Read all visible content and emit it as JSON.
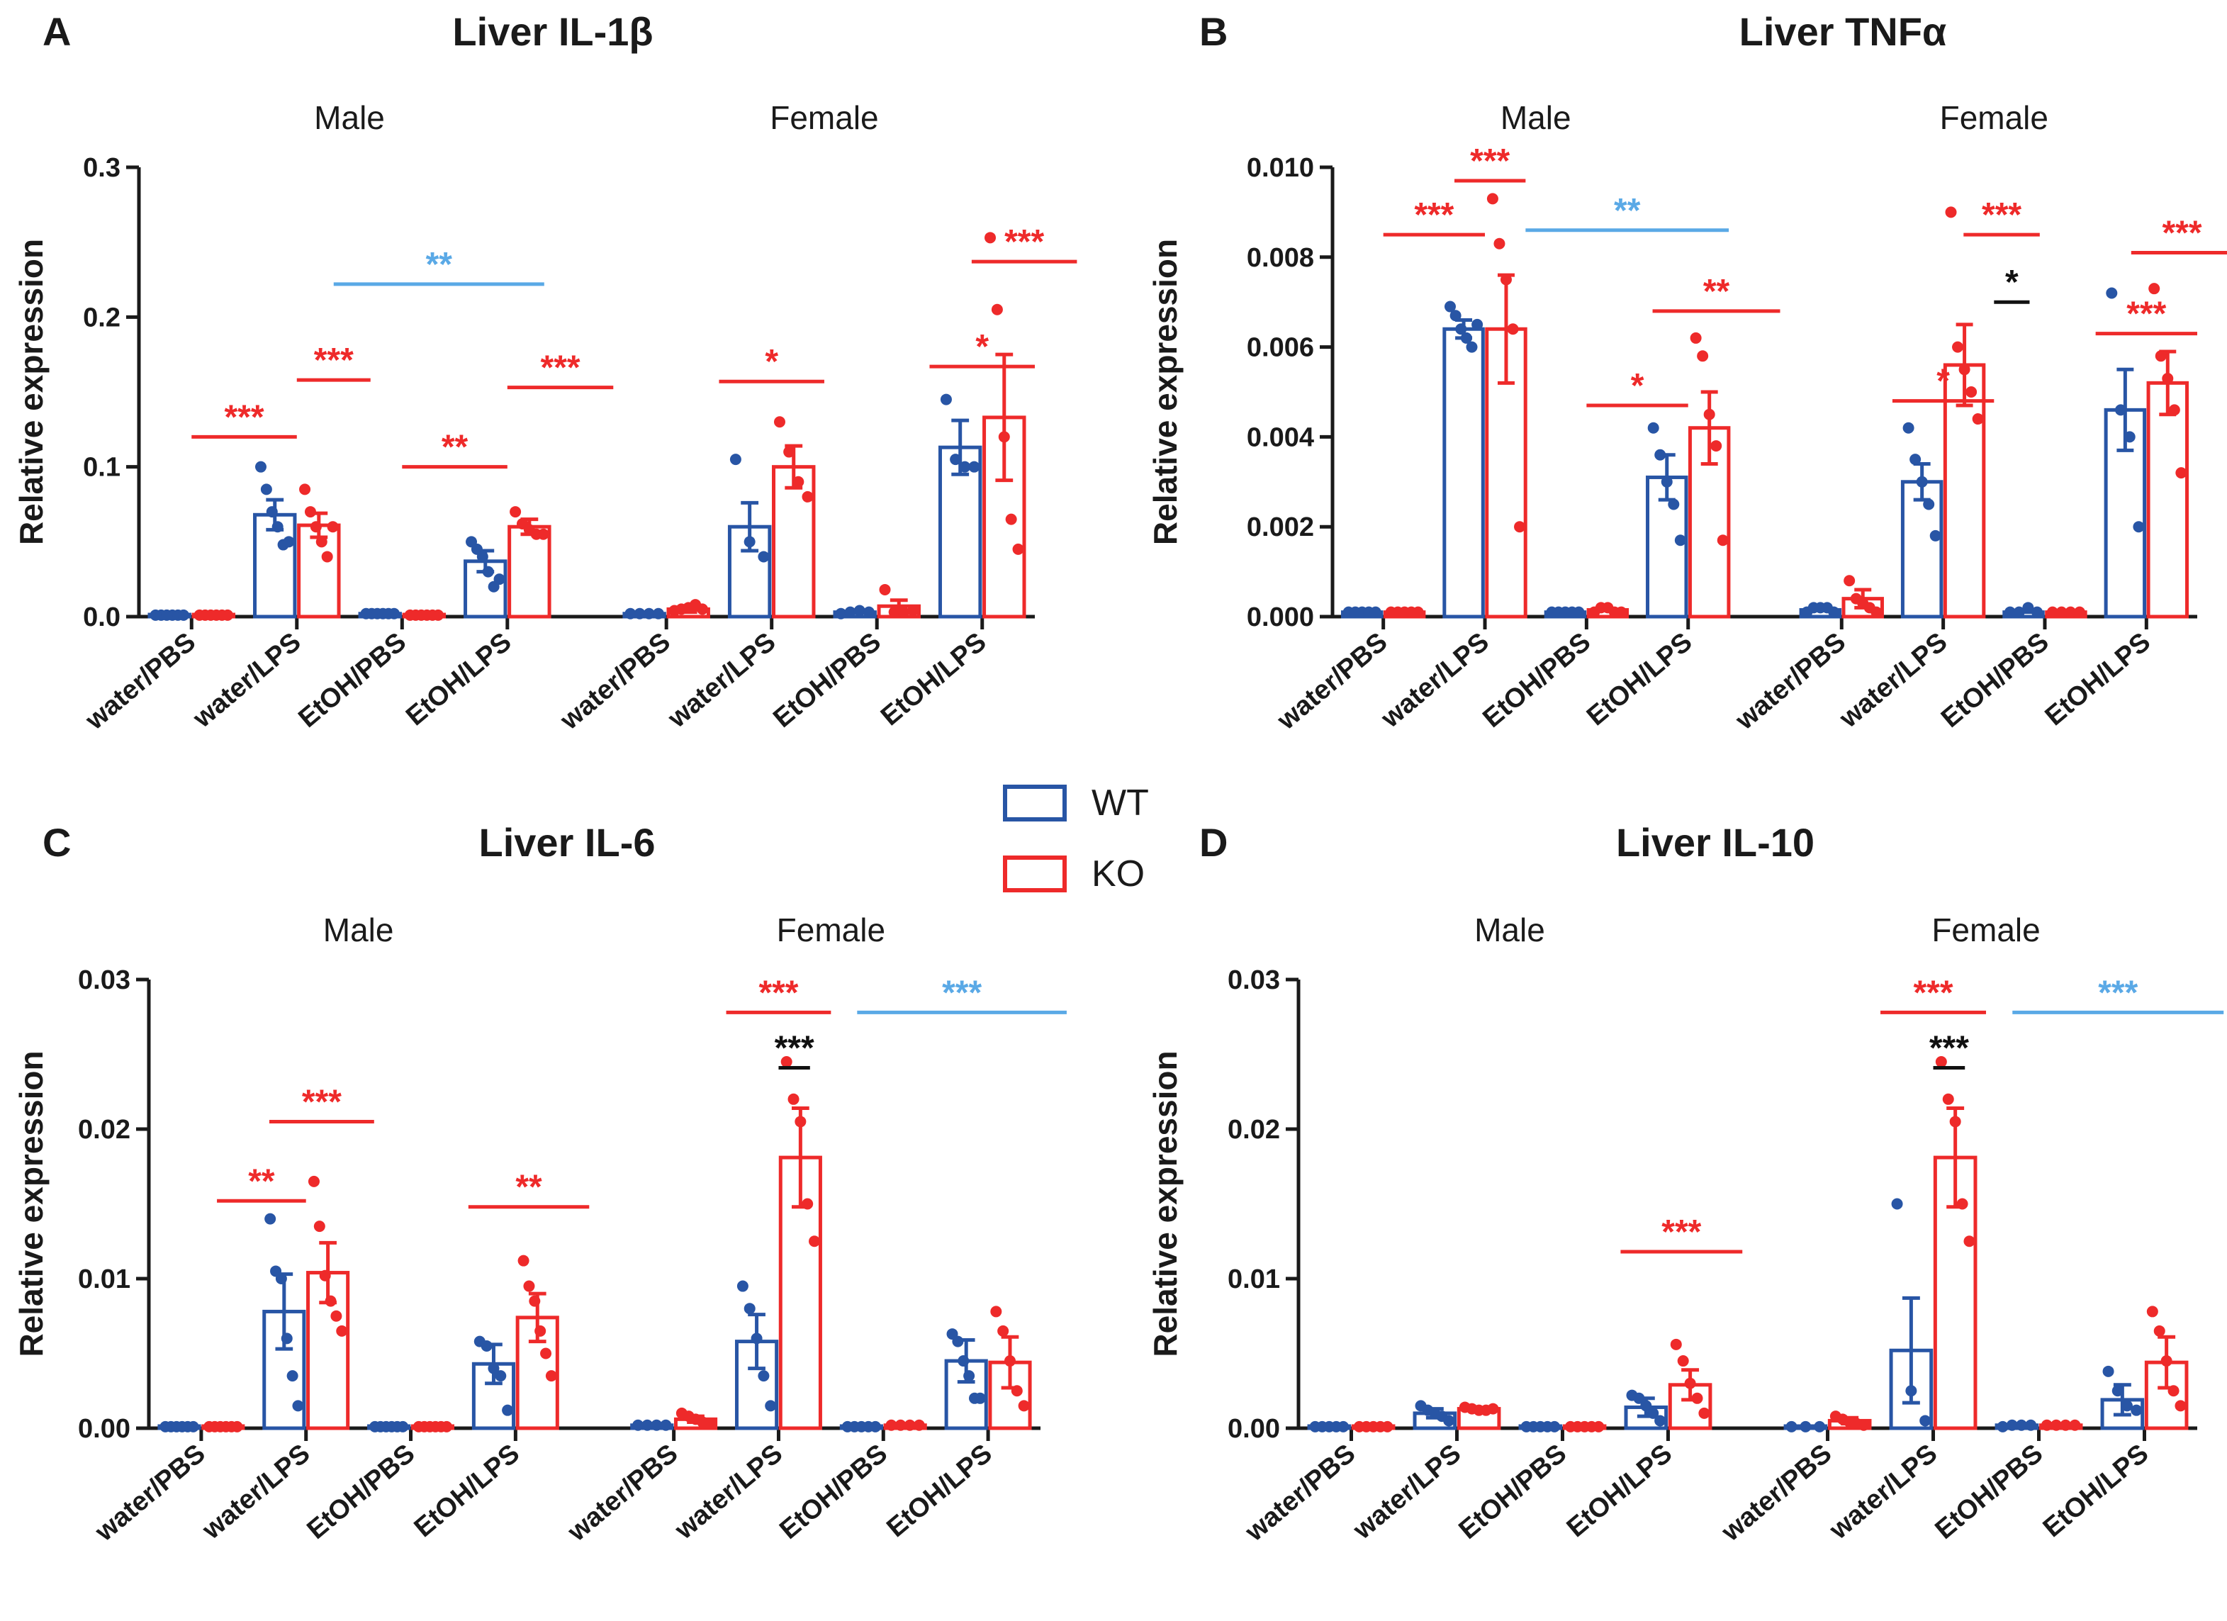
{
  "legend": {
    "items": [
      {
        "label": "WT",
        "color": "#2855a5"
      },
      {
        "label": "KO",
        "color": "#ee2a2a"
      }
    ]
  },
  "colors": {
    "wt": "#2855a5",
    "ko": "#ee2a2a",
    "blue_sig": "#5aa9e6",
    "black_sig": "#111111",
    "axis": "#1a1a1a"
  },
  "chart_data": [
    {
      "panel": "A",
      "type": "bar",
      "title": "Liver IL-1β",
      "ylabel": "Relative expression",
      "ylim": [
        0,
        0.3
      ],
      "yticks": [
        "0.0",
        "0.1",
        "0.2",
        "0.3"
      ],
      "yticks_values": [
        0,
        0.1,
        0.2,
        0.3
      ],
      "groups": [
        "Male",
        "Female"
      ],
      "categories": [
        "water/PBS",
        "water/LPS",
        "EtOH/PBS",
        "EtOH/LPS",
        "water/PBS",
        "water/LPS",
        "EtOH/PBS",
        "EtOH/LPS"
      ],
      "series": [
        {
          "name": "WT",
          "values": [
            0.001,
            0.068,
            0.002,
            0.037,
            0.002,
            0.06,
            0.003,
            0.113
          ],
          "errors": [
            0.001,
            0.01,
            0.001,
            0.007,
            0.001,
            0.016,
            0.001,
            0.018
          ],
          "points": [
            [
              0.001,
              0.001,
              0.001,
              0.001,
              0.001,
              0.001
            ],
            [
              0.1,
              0.085,
              0.07,
              0.06,
              0.048,
              0.05
            ],
            [
              0.002,
              0.002,
              0.002,
              0.002,
              0.002,
              0.002
            ],
            [
              0.05,
              0.045,
              0.04,
              0.03,
              0.02,
              0.025
            ],
            [
              0.002,
              0.002,
              0.002,
              0.002
            ],
            [
              0.105,
              0.05,
              0.04
            ],
            [
              0.002,
              0.003,
              0.004,
              0.003
            ],
            [
              0.145,
              0.105,
              0.1,
              0.1
            ]
          ]
        },
        {
          "name": "KO",
          "values": [
            0.001,
            0.061,
            0.001,
            0.06,
            0.005,
            0.1,
            0.007,
            0.133
          ],
          "errors": [
            0.001,
            0.008,
            0.001,
            0.005,
            0.002,
            0.014,
            0.004,
            0.042
          ],
          "points": [
            [
              0.001,
              0.001,
              0.001,
              0.001,
              0.001,
              0.001
            ],
            [
              0.085,
              0.07,
              0.06,
              0.05,
              0.04,
              0.06
            ],
            [
              0.001,
              0.001,
              0.001,
              0.001,
              0.001,
              0.001
            ],
            [
              0.07,
              0.062,
              0.058,
              0.055,
              0.055
            ],
            [
              0.004,
              0.005,
              0.006,
              0.008,
              0.005
            ],
            [
              0.13,
              0.11,
              0.09,
              0.08
            ],
            [
              0.018,
              0.003,
              0.003,
              0.004
            ],
            [
              0.253,
              0.205,
              0.12,
              0.065,
              0.045
            ]
          ]
        }
      ],
      "annotations": [
        {
          "text": "***",
          "from": 0,
          "to": 1,
          "y": 0.12,
          "color": "red"
        },
        {
          "text": "***",
          "from": 1,
          "to": 1.7,
          "y": 0.158,
          "color": "red"
        },
        {
          "text": "**",
          "from": 2,
          "to": 3,
          "y": 0.1,
          "color": "red"
        },
        {
          "text": "***",
          "from": 3,
          "to": 3.7,
          "y": 0.153,
          "color": "red"
        },
        {
          "text": "**",
          "from": 1.35,
          "to": 3.35,
          "y": 0.222,
          "color": "blue"
        },
        {
          "text": "*",
          "from": 4.5,
          "to": 5.5,
          "y": 0.157,
          "color": "red"
        },
        {
          "text": "*",
          "from": 6.5,
          "to": 7.5,
          "y": 0.167,
          "color": "red"
        },
        {
          "text": "***",
          "from": 6.9,
          "to": 7.9,
          "y": 0.237,
          "color": "red"
        }
      ]
    },
    {
      "panel": "B",
      "type": "bar",
      "title": "Liver TNFα",
      "ylabel": "Relative expression",
      "ylim": [
        0,
        0.01
      ],
      "yticks": [
        "0.000",
        "0.002",
        "0.004",
        "0.006",
        "0.008",
        "0.010"
      ],
      "yticks_values": [
        0,
        0.002,
        0.004,
        0.006,
        0.008,
        0.01
      ],
      "groups": [
        "Male",
        "Female"
      ],
      "categories": [
        "water/PBS",
        "water/LPS",
        "EtOH/PBS",
        "EtOH/LPS",
        "water/PBS",
        "water/LPS",
        "EtOH/PBS",
        "EtOH/LPS"
      ],
      "series": [
        {
          "name": "WT",
          "values": [
            0.0001,
            0.0064,
            0.0001,
            0.0031,
            0.00015,
            0.003,
            0.0001,
            0.0046
          ],
          "errors": [
            2e-05,
            0.0002,
            2e-05,
            0.0005,
            3e-05,
            0.0004,
            2e-05,
            0.0009
          ],
          "points": [
            [
              0.0001,
              0.0001,
              0.0001,
              0.0001,
              0.0001
            ],
            [
              0.0069,
              0.0067,
              0.0064,
              0.0062,
              0.006,
              0.0065
            ],
            [
              0.0001,
              0.0001,
              0.0001,
              0.0001,
              0.0001
            ],
            [
              0.0042,
              0.0036,
              0.003,
              0.0025,
              0.0017
            ],
            [
              0.0001,
              0.0002,
              0.0002,
              0.0002,
              0.0001
            ],
            [
              0.0042,
              0.0035,
              0.003,
              0.0025,
              0.0018
            ],
            [
              0.0001,
              0.0001,
              0.0002,
              0.0001
            ],
            [
              0.0072,
              0.0046,
              0.004,
              0.002
            ]
          ]
        },
        {
          "name": "KO",
          "values": [
            0.0001,
            0.0064,
            0.00015,
            0.0042,
            0.0004,
            0.0056,
            0.0001,
            0.0052
          ],
          "errors": [
            2e-05,
            0.0012,
            3e-05,
            0.0008,
            0.0002,
            0.0009,
            2e-05,
            0.0007
          ],
          "points": [
            [
              0.0001,
              0.0001,
              0.0001,
              0.0001,
              0.0001
            ],
            [
              0.0093,
              0.0083,
              0.0075,
              0.0064,
              0.002
            ],
            [
              0.0001,
              0.0002,
              0.0002,
              0.0001,
              0.0001
            ],
            [
              0.0062,
              0.0058,
              0.0045,
              0.0038,
              0.0017
            ],
            [
              0.0008,
              0.0004,
              0.0003,
              0.0002,
              0.0001
            ],
            [
              0.009,
              0.006,
              0.0055,
              0.005,
              0.0044
            ],
            [
              0.0001,
              0.0001,
              0.0001,
              0.0001
            ],
            [
              0.0073,
              0.0058,
              0.0053,
              0.0046,
              0.0032
            ]
          ]
        }
      ],
      "annotations": [
        {
          "text": "***",
          "from": 0,
          "to": 1,
          "y": 0.0085,
          "color": "red"
        },
        {
          "text": "***",
          "from": 0.7,
          "to": 1.4,
          "y": 0.0097,
          "color": "red"
        },
        {
          "text": "**",
          "from": 1.4,
          "to": 3.4,
          "y": 0.0086,
          "color": "blue"
        },
        {
          "text": "*",
          "from": 2,
          "to": 3,
          "y": 0.0047,
          "color": "red"
        },
        {
          "text": "**",
          "from": 2.65,
          "to": 3.65,
          "y": 0.0068,
          "color": "red"
        },
        {
          "text": "*",
          "from": 4.5,
          "to": 5.5,
          "y": 0.0048,
          "color": "red"
        },
        {
          "text": "***",
          "from": 5.2,
          "to": 5.95,
          "y": 0.0085,
          "color": "red"
        },
        {
          "text": "*",
          "from": 5.5,
          "to": 5.85,
          "y": 0.007,
          "color": "black"
        },
        {
          "text": "***",
          "from": 6.5,
          "to": 7.5,
          "y": 0.0063,
          "color": "red"
        },
        {
          "text": "***",
          "from": 6.85,
          "to": 7.85,
          "y": 0.0081,
          "color": "red"
        }
      ]
    },
    {
      "panel": "C",
      "type": "bar",
      "title": "Liver IL-6",
      "ylabel": "Relative expression",
      "ylim": [
        0,
        0.03
      ],
      "yticks": [
        "0.00",
        "0.01",
        "0.02",
        "0.03"
      ],
      "yticks_values": [
        0,
        0.01,
        0.02,
        0.03
      ],
      "groups": [
        "Male",
        "Female"
      ],
      "categories": [
        "water/PBS",
        "water/LPS",
        "EtOH/PBS",
        "EtOH/LPS",
        "water/PBS",
        "water/LPS",
        "EtOH/PBS",
        "EtOH/LPS"
      ],
      "series": [
        {
          "name": "WT",
          "values": [
            0.0001,
            0.0078,
            0.0001,
            0.0043,
            0.0002,
            0.0058,
            0.0001,
            0.0045
          ],
          "errors": [
            2e-05,
            0.0025,
            2e-05,
            0.0013,
            0.0001,
            0.0018,
            2e-05,
            0.0014
          ],
          "points": [
            [
              0.0001,
              0.0001,
              0.0001,
              0.0001,
              0.0001,
              0.0001
            ],
            [
              0.014,
              0.0105,
              0.01,
              0.006,
              0.0035,
              0.0015
            ],
            [
              0.0001,
              0.0001,
              0.0001,
              0.0001,
              0.0001,
              0.0001
            ],
            [
              0.0058,
              0.0055,
              0.004,
              0.0035,
              0.0012
            ],
            [
              0.0002,
              0.0002,
              0.0002,
              0.0002
            ],
            [
              0.0095,
              0.008,
              0.006,
              0.0035,
              0.0015
            ],
            [
              0.0001,
              0.0001,
              0.0001,
              0.0001,
              0.0001
            ],
            [
              0.0063,
              0.0058,
              0.0045,
              0.0035,
              0.002,
              0.002
            ]
          ]
        },
        {
          "name": "KO",
          "values": [
            0.0001,
            0.0104,
            0.0001,
            0.0074,
            0.0006,
            0.0181,
            0.0002,
            0.0044
          ],
          "errors": [
            2e-05,
            0.002,
            2e-05,
            0.0016,
            0.0002,
            0.0033,
            3e-05,
            0.0017
          ],
          "points": [
            [
              0.0001,
              0.0001,
              0.0001,
              0.0001,
              0.0001,
              0.0001
            ],
            [
              0.0165,
              0.0135,
              0.0102,
              0.0085,
              0.0075,
              0.0065
            ],
            [
              0.0001,
              0.0001,
              0.0001,
              0.0001,
              0.0001,
              0.0001
            ],
            [
              0.0112,
              0.0095,
              0.0085,
              0.0065,
              0.005,
              0.0035
            ],
            [
              0.001,
              0.0008,
              0.0006,
              0.0004,
              0.0003
            ],
            [
              0.0245,
              0.022,
              0.0205,
              0.015,
              0.0125
            ],
            [
              0.0002,
              0.0002,
              0.0002,
              0.0002
            ],
            [
              0.0078,
              0.0065,
              0.0045,
              0.0025,
              0.0015
            ]
          ]
        }
      ],
      "annotations": [
        {
          "text": "**",
          "from": 0.15,
          "to": 1,
          "y": 0.0152,
          "color": "red"
        },
        {
          "text": "***",
          "from": 0.65,
          "to": 1.65,
          "y": 0.0205,
          "color": "red"
        },
        {
          "text": "**",
          "from": 2.55,
          "to": 3.55,
          "y": 0.0148,
          "color": "red"
        },
        {
          "text": "***",
          "from": 4.5,
          "to": 5.5,
          "y": 0.0278,
          "color": "red"
        },
        {
          "text": "***",
          "from": 5.0,
          "to": 5.3,
          "y": 0.0241,
          "color": "black"
        },
        {
          "text": "***",
          "from": 5.75,
          "to": 7.75,
          "y": 0.0278,
          "color": "blue"
        }
      ]
    },
    {
      "panel": "D",
      "type": "bar",
      "title": "Liver IL-10",
      "ylabel": "Relative expression",
      "ylim": [
        0,
        0.03
      ],
      "yticks": [
        "0.00",
        "0.01",
        "0.02",
        "0.03"
      ],
      "yticks_values": [
        0,
        0.01,
        0.02,
        0.03
      ],
      "groups": [
        "Male",
        "Female"
      ],
      "categories": [
        "water/PBS",
        "water/LPS",
        "EtOH/PBS",
        "EtOH/LPS",
        "water/PBS",
        "water/LPS",
        "EtOH/PBS",
        "EtOH/LPS"
      ],
      "series": [
        {
          "name": "WT",
          "values": [
            0.0001,
            0.001,
            0.0001,
            0.0014,
            0.0001,
            0.0052,
            0.0002,
            0.0019
          ],
          "errors": [
            2e-05,
            0.0003,
            2e-05,
            0.0006,
            2e-05,
            0.0035,
            0.0001,
            0.001
          ],
          "points": [
            [
              0.0001,
              0.0001,
              0.0001,
              0.0001,
              0.0001
            ],
            [
              0.0015,
              0.0012,
              0.001,
              0.0008,
              0.0005
            ],
            [
              0.0001,
              0.0001,
              0.0001,
              0.0001,
              0.0001
            ],
            [
              0.0022,
              0.002,
              0.0015,
              0.001,
              0.0005
            ],
            [
              0.0001,
              0.0001,
              0.0001
            ],
            [
              0.015,
              0.0025,
              0.0005
            ],
            [
              0.0001,
              0.0002,
              0.0002,
              0.0002
            ],
            [
              0.0038,
              0.0025,
              0.0015,
              0.0012
            ]
          ]
        },
        {
          "name": "KO",
          "values": [
            0.0001,
            0.0013,
            0.0001,
            0.0029,
            0.0005,
            0.0181,
            0.0002,
            0.0044
          ],
          "errors": [
            2e-05,
            0.0001,
            2e-05,
            0.001,
            0.0002,
            0.0033,
            3e-05,
            0.0017
          ],
          "points": [
            [
              0.0001,
              0.0001,
              0.0001,
              0.0001,
              0.0001
            ],
            [
              0.0014,
              0.0013,
              0.0012,
              0.0012,
              0.0013
            ],
            [
              0.0001,
              0.0001,
              0.0001,
              0.0001,
              0.0001
            ],
            [
              0.0056,
              0.0045,
              0.003,
              0.002,
              0.001
            ],
            [
              0.0008,
              0.0006,
              0.0004,
              0.0003,
              0.0002
            ],
            [
              0.0245,
              0.022,
              0.0205,
              0.015,
              0.0125
            ],
            [
              0.0002,
              0.0002,
              0.0002,
              0.0002
            ],
            [
              0.0078,
              0.0065,
              0.0045,
              0.0025,
              0.0015
            ]
          ]
        }
      ],
      "annotations": [
        {
          "text": "***",
          "from": 2.55,
          "to": 3.55,
          "y": 0.0118,
          "color": "red"
        },
        {
          "text": "***",
          "from": 4.5,
          "to": 5.5,
          "y": 0.0278,
          "color": "red"
        },
        {
          "text": "***",
          "from": 5.0,
          "to": 5.3,
          "y": 0.0241,
          "color": "black"
        },
        {
          "text": "***",
          "from": 5.75,
          "to": 7.75,
          "y": 0.0278,
          "color": "blue"
        }
      ]
    }
  ]
}
